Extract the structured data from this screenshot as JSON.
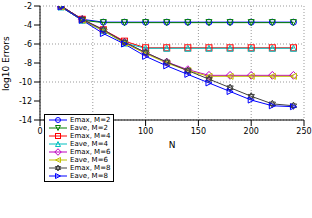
{
  "chart_data": {
    "type": "line",
    "x_label": "N",
    "y_label": "log10 Errors",
    "x": [
      20,
      40,
      60,
      80,
      100,
      120,
      140,
      160,
      180,
      200,
      220,
      240
    ],
    "xlim": [
      0,
      250
    ],
    "xticks": [
      0,
      50,
      100,
      150,
      200,
      250
    ],
    "ylim": [
      -14,
      -2
    ],
    "yticks": [
      -14,
      -12,
      -10,
      -8,
      -6,
      -4,
      -2
    ],
    "grid": true,
    "legend": "lower left",
    "series": [
      {
        "name": "Emax, M=2",
        "color": "#0000ff",
        "marker": "circle",
        "values": [
          -2.0,
          -3.4,
          -3.7,
          -3.7,
          -3.7,
          -3.7,
          -3.7,
          -3.7,
          -3.7,
          -3.7,
          -3.7,
          -3.7
        ]
      },
      {
        "name": "Eave, M=2",
        "color": "#008000",
        "marker": "triangle-down",
        "values": [
          -2.1,
          -3.5,
          -3.75,
          -3.75,
          -3.75,
          -3.75,
          -3.75,
          -3.75,
          -3.75,
          -3.75,
          -3.75,
          -3.75
        ]
      },
      {
        "name": "Emax, M=4",
        "color": "#ff0000",
        "marker": "square",
        "values": [
          -2.0,
          -3.4,
          -4.5,
          -5.7,
          -6.4,
          -6.4,
          -6.4,
          -6.4,
          -6.4,
          -6.4,
          -6.4,
          -6.4
        ]
      },
      {
        "name": "Eave, M=4",
        "color": "#00bfbf",
        "marker": "triangle-up",
        "values": [
          -2.1,
          -3.5,
          -4.6,
          -5.9,
          -6.45,
          -6.45,
          -6.45,
          -6.45,
          -6.45,
          -6.45,
          -6.45,
          -6.45
        ]
      },
      {
        "name": "Emax, M=6",
        "color": "#bf00bf",
        "marker": "diamond",
        "values": [
          -2.0,
          -3.4,
          -4.5,
          -5.8,
          -6.9,
          -7.9,
          -8.7,
          -9.3,
          -9.3,
          -9.3,
          -9.3,
          -9.3
        ]
      },
      {
        "name": "Eave, M=6",
        "color": "#bfbf00",
        "marker": "triangle-left",
        "values": [
          -2.1,
          -3.5,
          -4.6,
          -5.9,
          -7.0,
          -8.0,
          -8.8,
          -9.4,
          -9.4,
          -9.4,
          -9.4,
          -9.4
        ]
      },
      {
        "name": "Emax, M=8",
        "color": "#404040",
        "marker": "hexagram",
        "values": [
          -2.0,
          -3.4,
          -4.5,
          -5.8,
          -6.9,
          -7.9,
          -8.8,
          -9.7,
          -10.6,
          -11.5,
          -12.3,
          -12.5
        ]
      },
      {
        "name": "Eave, M=8",
        "color": "#0000ff",
        "marker": "triangle-right",
        "values": [
          -2.1,
          -3.5,
          -4.9,
          -6.0,
          -7.3,
          -8.3,
          -9.2,
          -10.1,
          -11.0,
          -11.9,
          -12.5,
          -12.6
        ]
      }
    ]
  }
}
